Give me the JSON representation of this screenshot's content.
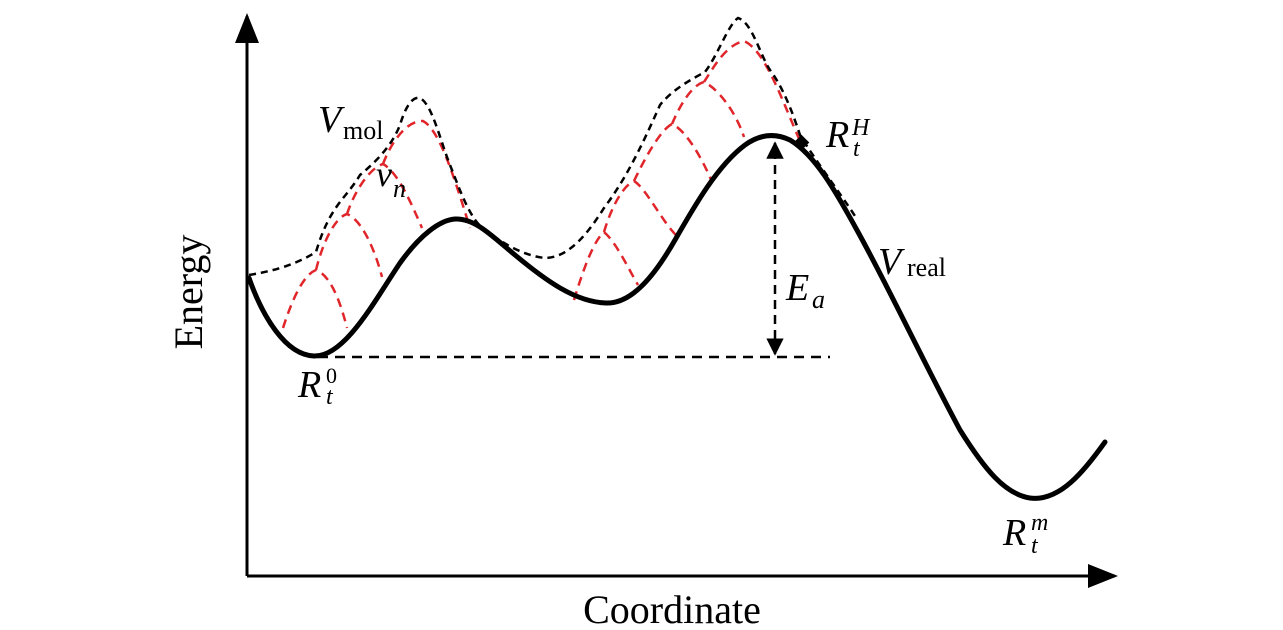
{
  "axes": {
    "x_label": "Coordinate",
    "y_label": "Energy"
  },
  "curves": {
    "v_mol": {
      "symbol": "V",
      "subscript": "mol"
    },
    "v_n": {
      "symbol": "v",
      "subscript": "n"
    },
    "v_real": {
      "symbol": "V",
      "subscript": "real"
    }
  },
  "points": {
    "r_t_0": {
      "symbol": "R",
      "subscript": "t",
      "superscript": "0"
    },
    "r_t_h": {
      "symbol": "R",
      "subscript": "t",
      "superscript": "H"
    },
    "r_t_m": {
      "symbol": "R",
      "subscript": "t",
      "superscript": "m"
    }
  },
  "activation_energy": {
    "symbol": "E",
    "subscript": "a"
  },
  "colors": {
    "real_curve": "#000000",
    "molecular_envelope": "#000000",
    "local_wells": "#e0262b"
  }
}
